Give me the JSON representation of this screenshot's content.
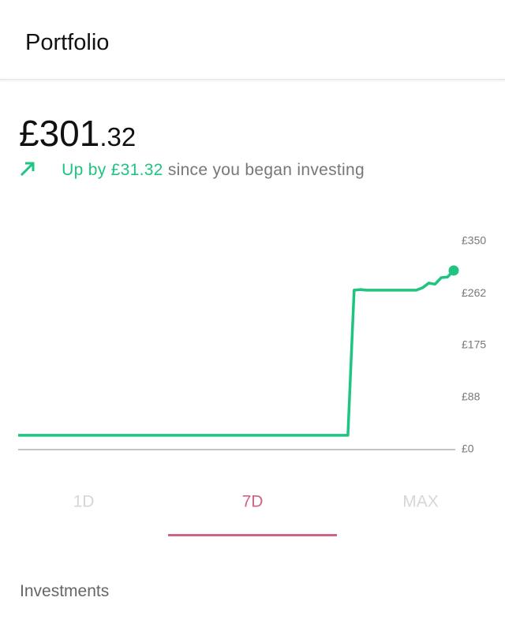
{
  "header": {
    "title": "Portfolio"
  },
  "balance": {
    "main": "£301",
    "fraction": ".32"
  },
  "change": {
    "amount_text": "Up by £31.32",
    "suffix": "since you began investing"
  },
  "chart_data": {
    "type": "line",
    "color": "#1ec47f",
    "ylim": [
      0,
      350
    ],
    "yticks": [
      {
        "value": 0,
        "label": "£0"
      },
      {
        "value": 88,
        "label": "£88"
      },
      {
        "value": 175,
        "label": "£175"
      },
      {
        "value": 262,
        "label": "£262"
      },
      {
        "value": 350,
        "label": "£350"
      }
    ],
    "values": [
      24,
      24,
      24,
      24,
      24,
      24,
      24,
      24,
      24,
      24,
      24,
      24,
      24,
      24,
      24,
      24,
      24,
      24,
      24,
      24,
      24,
      24,
      24,
      24,
      24,
      24,
      24,
      24,
      24,
      24,
      24,
      24,
      24,
      24,
      24,
      24,
      24,
      24,
      24,
      24,
      24,
      24,
      24,
      24,
      24,
      24,
      24,
      24,
      24,
      24,
      24,
      24,
      24,
      24,
      268,
      269,
      268,
      268,
      268,
      268,
      268,
      268,
      268,
      268,
      268,
      272,
      280,
      278,
      289,
      290,
      301
    ]
  },
  "tabs": [
    "1D",
    "7D",
    "MAX"
  ],
  "selected_tab": 1,
  "section": {
    "title": "Investments"
  }
}
